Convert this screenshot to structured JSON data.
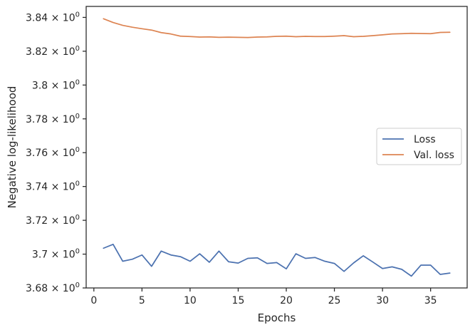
{
  "chart_data": {
    "type": "line",
    "title": "",
    "xlabel": "Epochs",
    "ylabel": "Negative log-likelihood",
    "xlim": [
      -0.8,
      38.8
    ],
    "ylim": [
      3.68,
      3.8465
    ],
    "x_ticks": [
      0,
      5,
      10,
      15,
      20,
      25,
      30,
      35
    ],
    "y_ticks": [
      {
        "value": 3.68,
        "mantissa": "3.68"
      },
      {
        "value": 3.7,
        "mantissa": "3.7"
      },
      {
        "value": 3.72,
        "mantissa": "3.72"
      },
      {
        "value": 3.74,
        "mantissa": "3.74"
      },
      {
        "value": 3.76,
        "mantissa": "3.76"
      },
      {
        "value": 3.78,
        "mantissa": "3.78"
      },
      {
        "value": 3.8,
        "mantissa": "3.8"
      },
      {
        "value": 3.82,
        "mantissa": "3.82"
      },
      {
        "value": 3.84,
        "mantissa": "3.84"
      }
    ],
    "y_tick_suffix": "× 10",
    "y_tick_exponent": "0",
    "grid": false,
    "legend_position": "center-right",
    "x": [
      1,
      2,
      3,
      4,
      5,
      6,
      7,
      8,
      9,
      10,
      11,
      12,
      13,
      14,
      15,
      16,
      17,
      18,
      19,
      20,
      21,
      22,
      23,
      24,
      25,
      26,
      27,
      28,
      29,
      30,
      31,
      32,
      33,
      34,
      35,
      36,
      37
    ],
    "series": [
      {
        "name": "Loss",
        "color": "#4c72b0",
        "values": [
          3.7035,
          3.7058,
          3.6958,
          3.697,
          3.6995,
          3.6928,
          3.7018,
          3.6995,
          3.6985,
          3.6958,
          3.7002,
          3.6952,
          3.7018,
          3.6955,
          3.6947,
          3.6975,
          3.6978,
          3.6945,
          3.695,
          3.6913,
          3.7002,
          3.6975,
          3.698,
          3.6958,
          3.6945,
          3.6898,
          3.6948,
          3.699,
          3.6953,
          3.6915,
          3.6925,
          3.691,
          3.687,
          3.6935,
          3.6935,
          3.688,
          3.6888
        ]
      },
      {
        "name": "Val. loss",
        "color": "#dd8452",
        "values": [
          3.8392,
          3.837,
          3.8353,
          3.8342,
          3.8333,
          3.8325,
          3.831,
          3.8302,
          3.8289,
          3.8287,
          3.8284,
          3.8285,
          3.8282,
          3.8283,
          3.8282,
          3.8281,
          3.8284,
          3.8285,
          3.8288,
          3.8289,
          3.8286,
          3.8288,
          3.8287,
          3.8287,
          3.8289,
          3.8292,
          3.8286,
          3.8288,
          3.8292,
          3.8297,
          3.8302,
          3.8304,
          3.8306,
          3.8305,
          3.8304,
          3.8311,
          3.8312
        ]
      }
    ]
  }
}
